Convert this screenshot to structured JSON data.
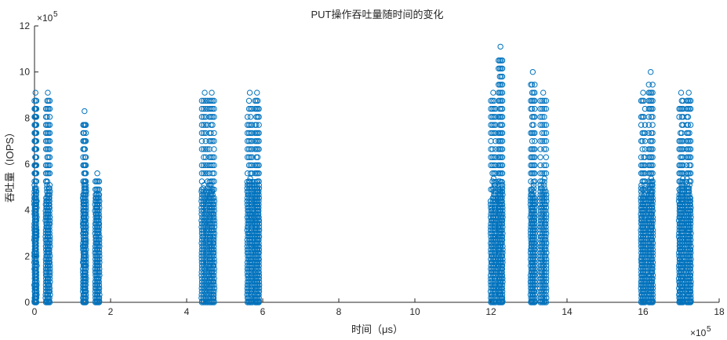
{
  "chart_data": {
    "type": "scatter",
    "title": "PUT操作吞吐量随时间的变化",
    "xlabel": "时间（μs）",
    "ylabel": "吞吐量（IOPS）",
    "x_exponent_label": "×10",
    "x_exponent_power": "5",
    "y_exponent_label": "×10",
    "y_exponent_power": "5",
    "xlim": [
      0,
      18
    ],
    "ylim": [
      0,
      12
    ],
    "x_ticks": [
      "0",
      "2",
      "4",
      "6",
      "8",
      "10",
      "12",
      "14",
      "16",
      "18"
    ],
    "y_ticks": [
      "0",
      "2",
      "4",
      "6",
      "8",
      "10",
      "12"
    ],
    "grid": false,
    "marker": "circle-open",
    "marker_color": "#0072BD",
    "units_note": "x and y values in units of 10^5",
    "series": [
      {
        "clusters": [
          {
            "x": [
              0.0,
              0.05
            ],
            "ymax": 9.1
          },
          {
            "x": [
              0.3,
              0.4
            ],
            "ymax": 9.1
          },
          {
            "x": [
              1.28,
              1.35
            ],
            "ymax": 8.3
          },
          {
            "x": [
              1.6,
              1.7
            ],
            "ymax": 5.6
          },
          {
            "x": [
              4.4,
              4.55
            ],
            "ymax": 9.1
          },
          {
            "x": [
              4.6,
              4.72
            ],
            "ymax": 9.1
          },
          {
            "x": [
              5.6,
              5.72
            ],
            "ymax": 9.1
          },
          {
            "x": [
              5.8,
              5.9
            ],
            "ymax": 9.1
          },
          {
            "x": [
              12.0,
              12.12
            ],
            "ymax": 9.1
          },
          {
            "x": [
              12.2,
              12.3
            ],
            "ymax": 11.1
          },
          {
            "x": [
              13.05,
              13.15
            ],
            "ymax": 10.0
          },
          {
            "x": [
              13.3,
              13.45
            ],
            "ymax": 9.1
          },
          {
            "x": [
              15.95,
              16.05
            ],
            "ymax": 9.1
          },
          {
            "x": [
              16.15,
              16.25
            ],
            "ymax": 10.0
          },
          {
            "x": [
              16.95,
              17.05
            ],
            "ymax": 9.1
          },
          {
            "x": [
              17.15,
              17.25
            ],
            "ymax": 9.1
          }
        ]
      }
    ]
  }
}
